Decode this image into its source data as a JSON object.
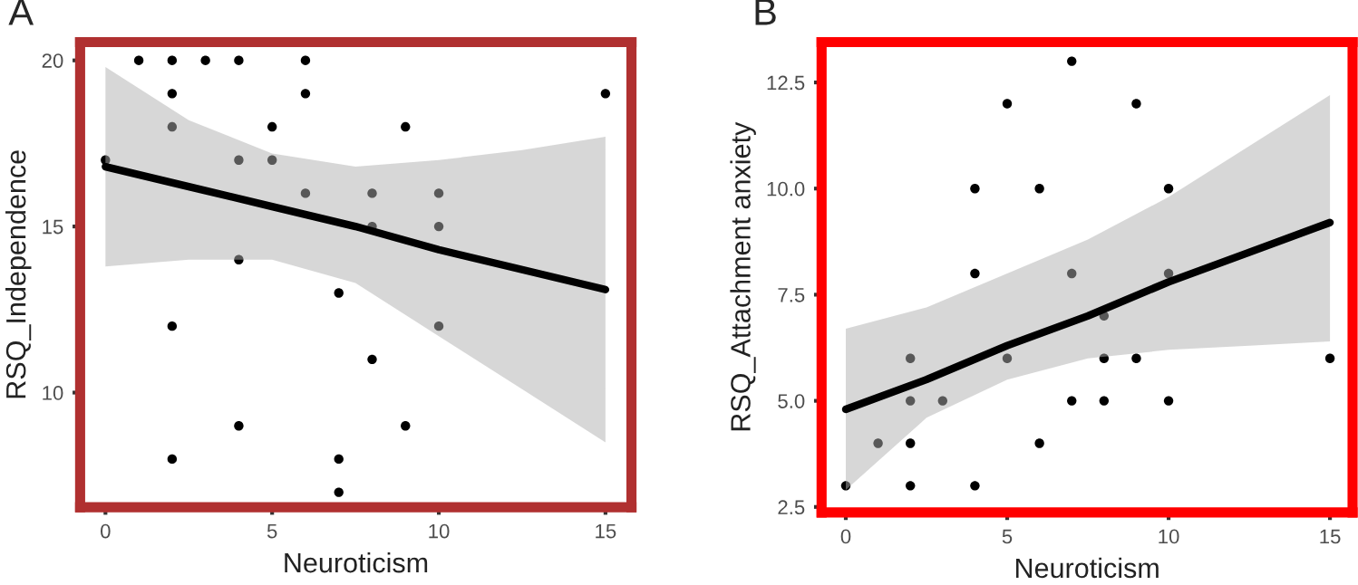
{
  "chart_data": [
    {
      "type": "scatter",
      "title": "A",
      "xlabel": "Neuroticism",
      "ylabel": "RSQ_Independence",
      "grid": false,
      "xlim": [
        -0.76,
        15.78
      ],
      "ylim": [
        6.55,
        20.55
      ],
      "xticks": [
        0,
        5,
        10,
        15
      ],
      "yticks": [
        10,
        15,
        20
      ],
      "series": [
        {
          "marker": "circle",
          "color": "#000000",
          "x": [
            1,
            2,
            3,
            4,
            6,
            2,
            6,
            15,
            2,
            5,
            9,
            0,
            4,
            5,
            6,
            8,
            10,
            8,
            10,
            4,
            7,
            2,
            10,
            8,
            4,
            9,
            2,
            7,
            7
          ],
          "values": [
            20,
            20,
            20,
            20,
            20,
            19,
            19,
            19,
            18,
            18,
            18,
            17,
            17,
            17,
            16,
            16,
            16,
            15,
            15,
            14,
            13,
            12,
            12,
            11,
            9,
            9,
            8,
            8,
            7
          ]
        },
        {
          "type": "line",
          "color": "#000000",
          "x": [
            0,
            2.5,
            5,
            7.5,
            10,
            12.5,
            15
          ],
          "values": [
            16.8,
            16.2,
            15.6,
            15.0,
            14.3,
            13.7,
            13.1
          ],
          "lower": [
            13.8,
            14.0,
            14.0,
            13.3,
            11.7,
            10.1,
            8.5
          ],
          "upper": [
            19.8,
            18.2,
            17.2,
            16.8,
            17.0,
            17.3,
            17.7
          ]
        }
      ]
    },
    {
      "type": "scatter",
      "title": "B",
      "xlabel": "Neuroticism",
      "ylabel": "RSQ_Attachment anxiety",
      "grid": false,
      "xlim": [
        -0.75,
        15.7
      ],
      "ylim": [
        2.37,
        13.45
      ],
      "xticks": [
        0,
        5,
        10,
        15
      ],
      "yticks": [
        {
          "value": 2.5,
          "label": "2.5"
        },
        {
          "value": 5,
          "label": "5.0"
        },
        {
          "value": 7.5,
          "label": "7.5"
        },
        {
          "value": 10,
          "label": "10.0"
        },
        {
          "value": 12.5,
          "label": "12.5"
        }
      ],
      "series": [
        {
          "marker": "circle",
          "color": "#000000",
          "x": [
            7,
            5,
            9,
            4,
            6,
            10,
            4,
            7,
            10,
            8,
            2,
            5,
            8,
            9,
            15,
            2,
            3,
            7,
            8,
            10,
            1,
            2,
            6,
            0,
            2,
            4
          ],
          "values": [
            13,
            12,
            12,
            10,
            10,
            10,
            8,
            8,
            8,
            7,
            6,
            6,
            6,
            6,
            6,
            5,
            5,
            5,
            5,
            5,
            4,
            4,
            4,
            3,
            3,
            3
          ]
        },
        {
          "type": "line",
          "color": "#000000",
          "x": [
            0,
            2.5,
            5,
            7.5,
            10,
            12.5,
            15
          ],
          "values": [
            4.8,
            5.5,
            6.3,
            7.0,
            7.8,
            8.5,
            9.2
          ],
          "lower": [
            2.9,
            4.6,
            5.5,
            6.0,
            6.2,
            6.3,
            6.4
          ],
          "upper": [
            6.7,
            7.2,
            8.0,
            8.8,
            9.8,
            11.0,
            12.2
          ]
        }
      ]
    }
  ]
}
